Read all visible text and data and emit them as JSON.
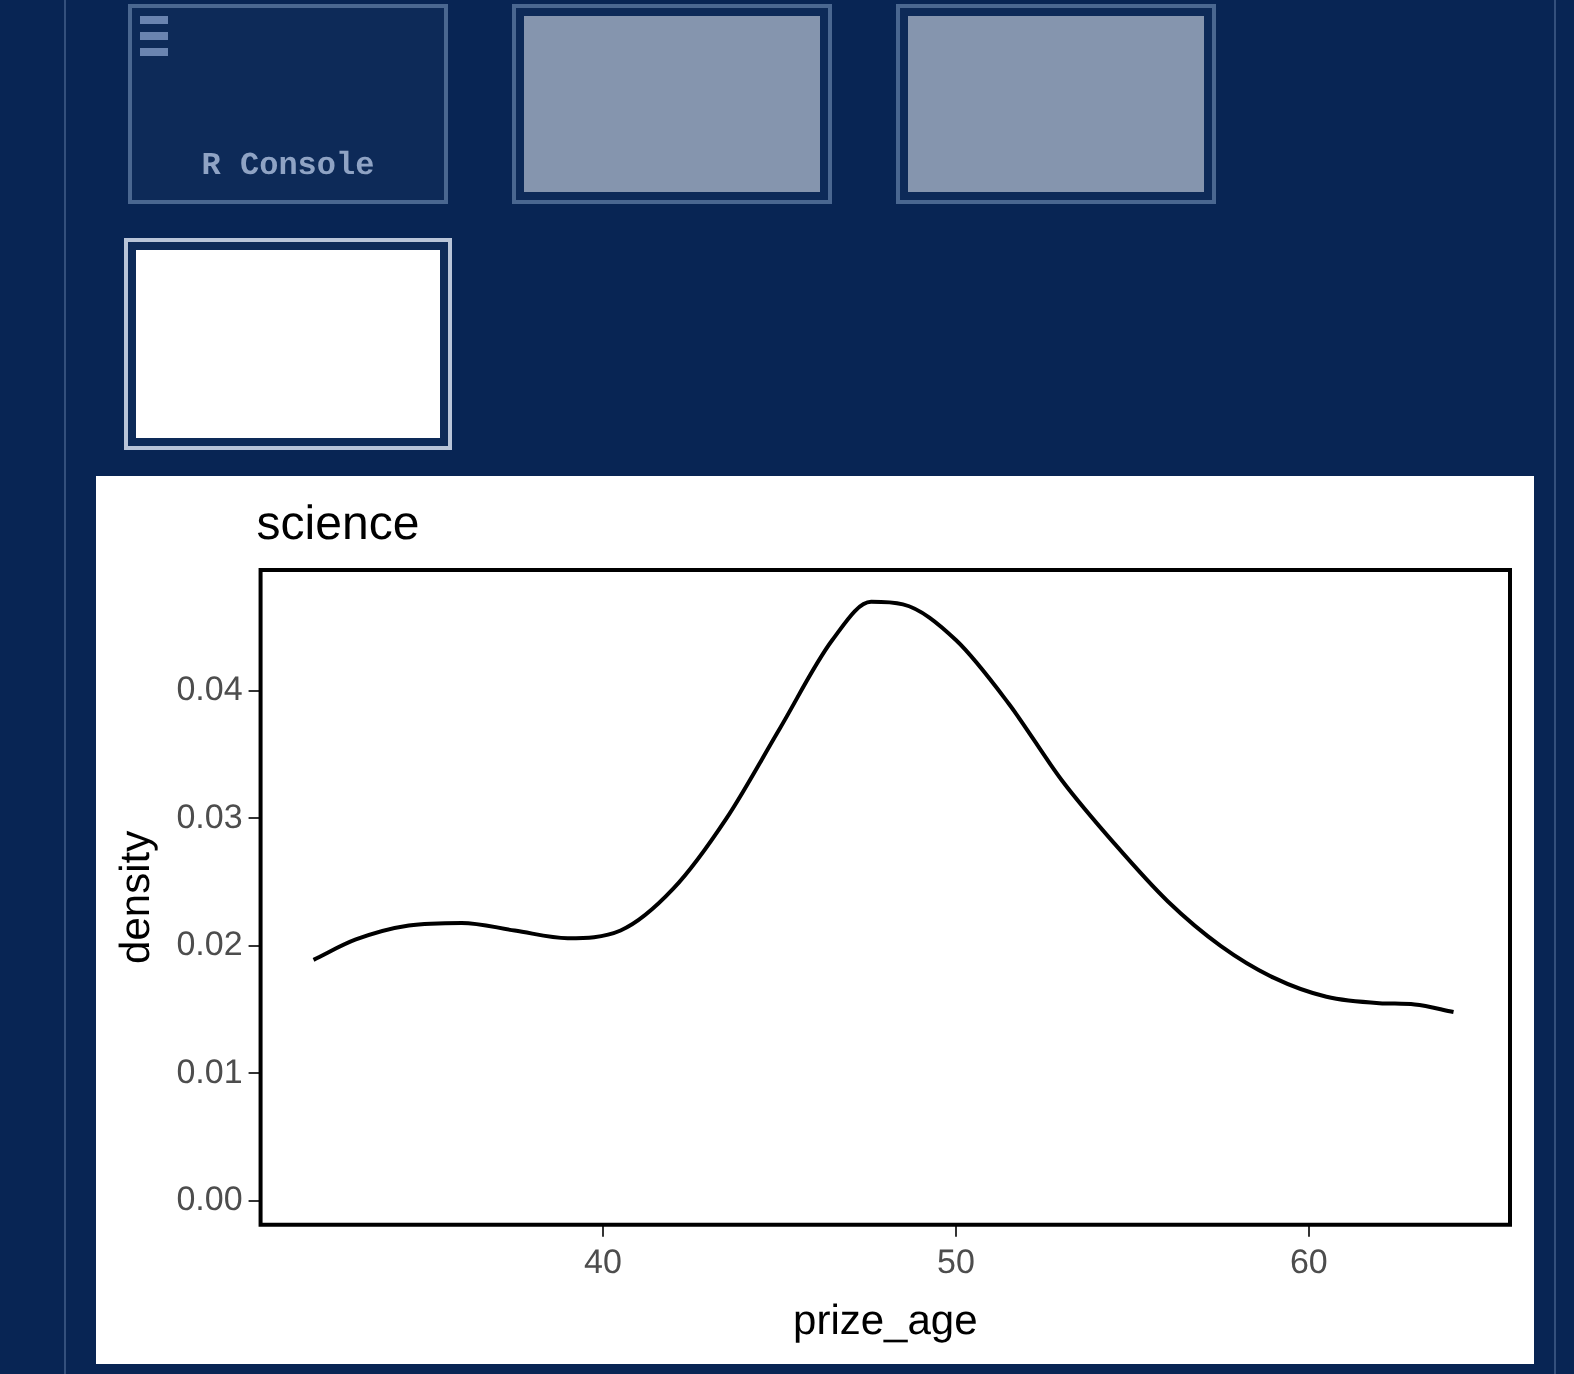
{
  "chart_data": {
    "type": "line",
    "title": "science",
    "xlabel": "prize_age",
    "ylabel": "density",
    "annotations": [
      "R Console"
    ],
    "series": [
      {
        "color": "#000000",
        "x": [
          31.8,
          33,
          34.5,
          36,
          37.5,
          39,
          40.5,
          42,
          43.5,
          45,
          46.5,
          47.6,
          48.5,
          50,
          51.5,
          53,
          54.5,
          56,
          57.5,
          59,
          60.5,
          62,
          63,
          64.1
        ],
        "values": [
          0.0189,
          0.0205,
          0.0216,
          0.0218,
          0.0212,
          0.0206,
          0.0212,
          0.0245,
          0.03,
          0.037,
          0.044,
          0.047,
          0.0468,
          0.044,
          0.039,
          0.033,
          0.028,
          0.0235,
          0.02,
          0.0175,
          0.016,
          0.0155,
          0.0154,
          0.0148
        ]
      }
    ],
    "xlim": [
      30.3,
      65.7
    ],
    "xticks": [
      40,
      50,
      60
    ],
    "ylim": [
      -0.0019,
      0.0495
    ],
    "yticks": [
      {
        "value": 0,
        "label": "0.00"
      },
      {
        "value": 0.01,
        "label": "0.01"
      },
      {
        "value": 0.02,
        "label": "0.02"
      },
      {
        "value": 0.03,
        "label": "0.03"
      },
      {
        "value": 0.04,
        "label": "0.04"
      }
    ],
    "grid": false,
    "legend": false,
    "marker": "none",
    "line_style": "solid"
  }
}
